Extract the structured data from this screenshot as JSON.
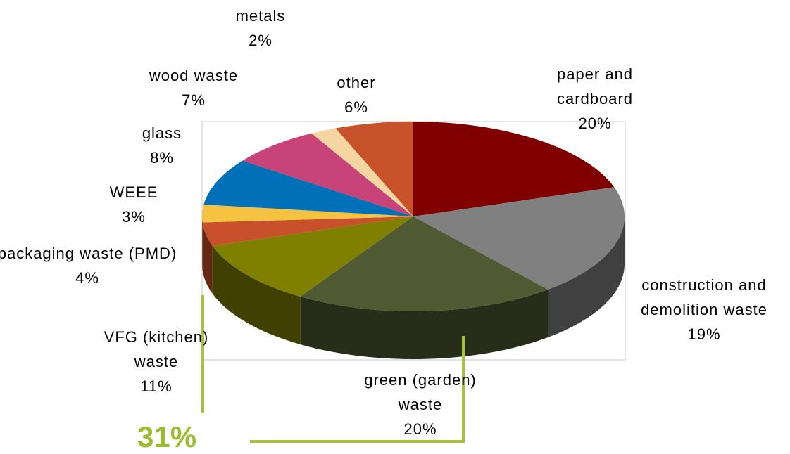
{
  "chart_data": {
    "type": "pie3d",
    "categories": [
      "paper and cardboard",
      "construction and demolition waste",
      "green (garden) waste",
      "VFG (kitchen) waste",
      "packaging waste (PMD)",
      "WEEE",
      "glass",
      "wood waste",
      "metals",
      "other"
    ],
    "values": [
      20,
      19,
      20,
      11,
      4,
      3,
      8,
      7,
      2,
      6
    ],
    "value_labels": [
      "20%",
      "19%",
      "20%",
      "11%",
      "4%",
      "3%",
      "8%",
      "7%",
      "2%",
      "6%"
    ],
    "colors": [
      "#800000",
      "#808080",
      "#505a32",
      "#808000",
      "#c8502a",
      "#f5c242",
      "#0070b8",
      "#c84478",
      "#f5d5a0",
      "#c8522a"
    ],
    "annotation": "31%"
  }
}
